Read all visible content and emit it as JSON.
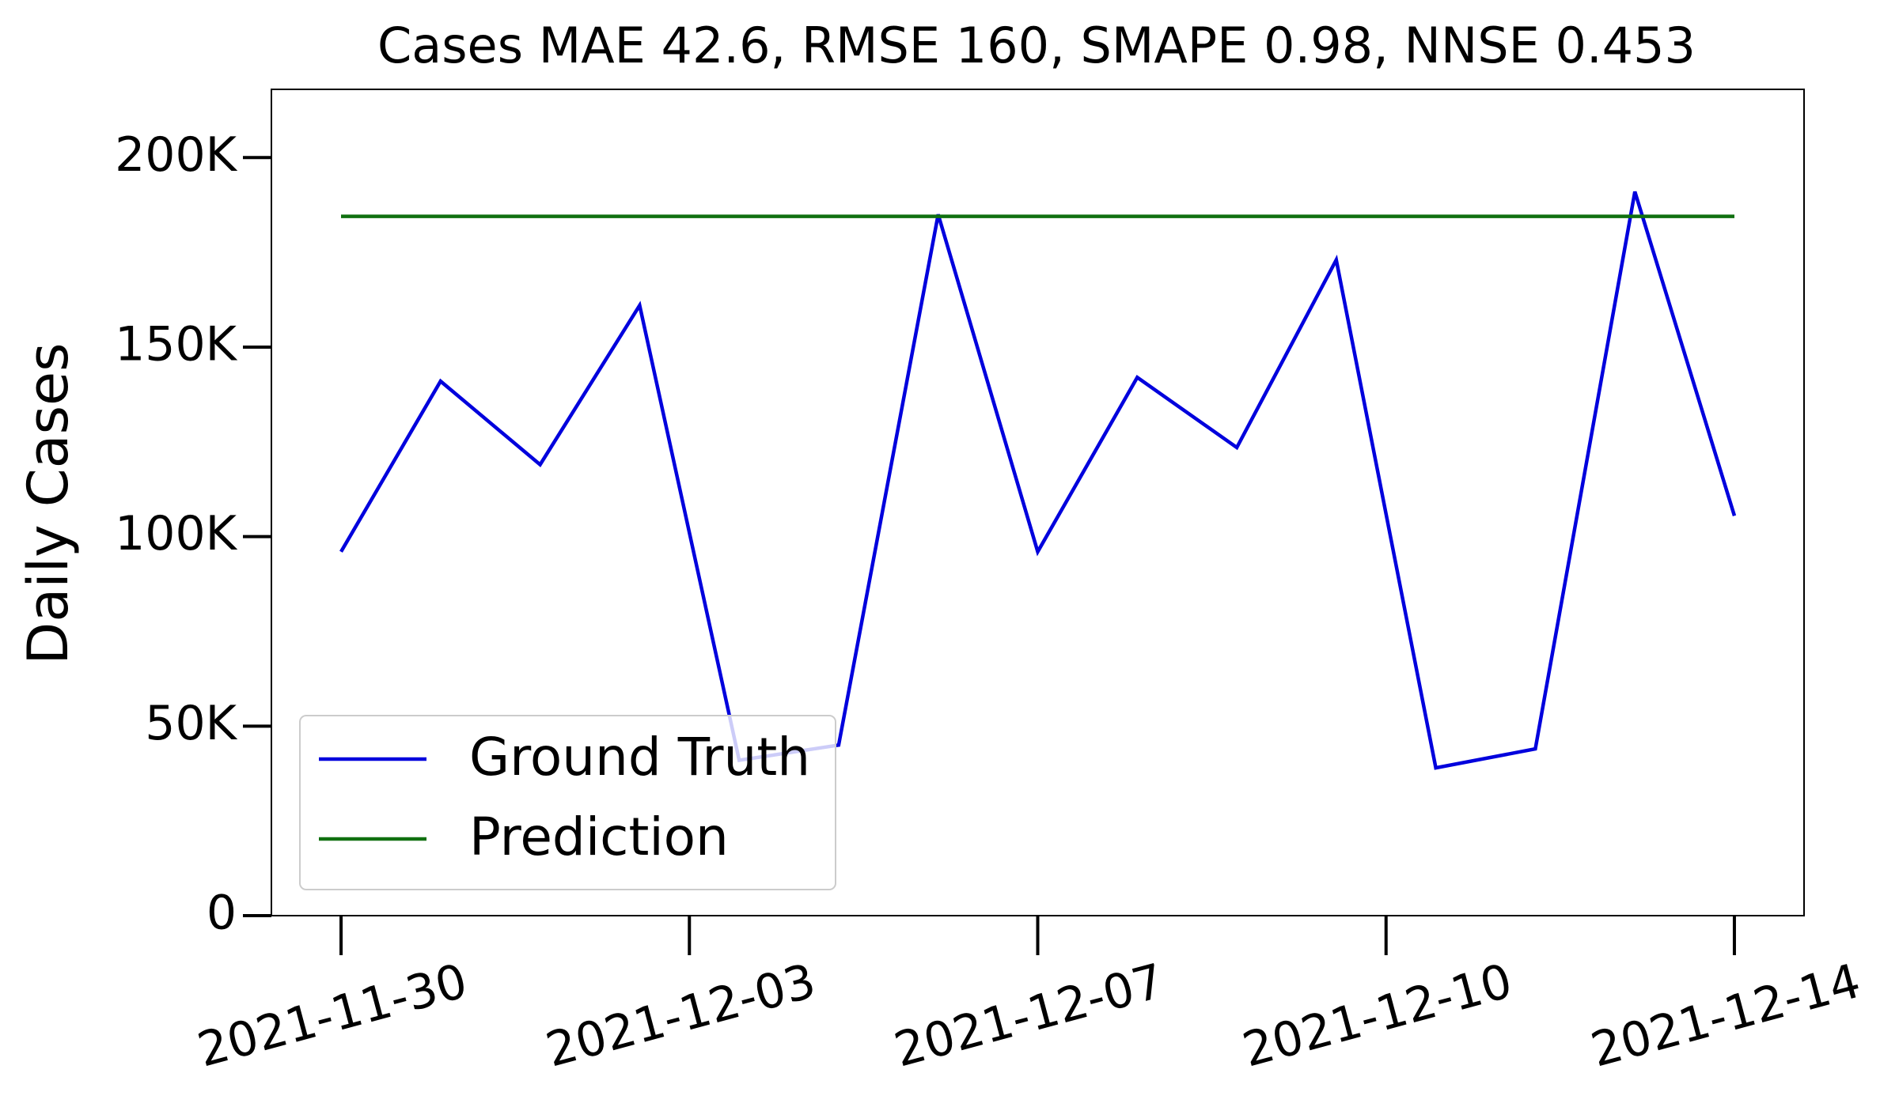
{
  "chart_data": {
    "type": "line",
    "title": "Cases MAE 42.6, RMSE 160, SMAPE 0.98, NNSE 0.453",
    "y_label": "Daily Cases",
    "x": [
      "2021-11-30",
      "2021-12-01",
      "2021-12-02",
      "2021-12-03",
      "2021-12-04",
      "2021-12-05",
      "2021-12-06",
      "2021-12-07",
      "2021-12-08",
      "2021-12-09",
      "2021-12-10",
      "2021-12-11",
      "2021-12-12",
      "2021-12-13",
      "2021-12-14"
    ],
    "series": [
      {
        "name": "Ground Truth",
        "color": "#0000dd",
        "values": [
          96000,
          141000,
          119000,
          161000,
          41000,
          45000,
          185000,
          96000,
          142000,
          123500,
          173000,
          39000,
          44000,
          191000,
          105500
        ]
      },
      {
        "name": "Prediction",
        "color": "#107010",
        "values": [
          184500,
          184500,
          184500,
          184500,
          184500,
          184500,
          184500,
          184500,
          184500,
          184500,
          184500,
          184500,
          184500,
          184500,
          184500
        ]
      }
    ],
    "xlim": [
      "2021-11-29T07:12",
      "2021-12-14T16:48"
    ],
    "xticks": [
      {
        "value": "2021-11-30T00:00",
        "label": "2021-11-30"
      },
      {
        "value": "2021-12-03T12:00",
        "label": "2021-12-03"
      },
      {
        "value": "2021-12-07T00:00",
        "label": "2021-12-07"
      },
      {
        "value": "2021-12-10T12:00",
        "label": "2021-12-10"
      },
      {
        "value": "2021-12-14T00:00",
        "label": "2021-12-14"
      }
    ],
    "ylim": [
      0,
      218000
    ],
    "yticks": [
      0,
      {
        "value": 50000,
        "label": "50K"
      },
      {
        "value": 100000,
        "label": "100K"
      },
      {
        "value": 150000,
        "label": "150K"
      },
      {
        "value": 200000,
        "label": "200K"
      }
    ],
    "legend": "lower left"
  }
}
